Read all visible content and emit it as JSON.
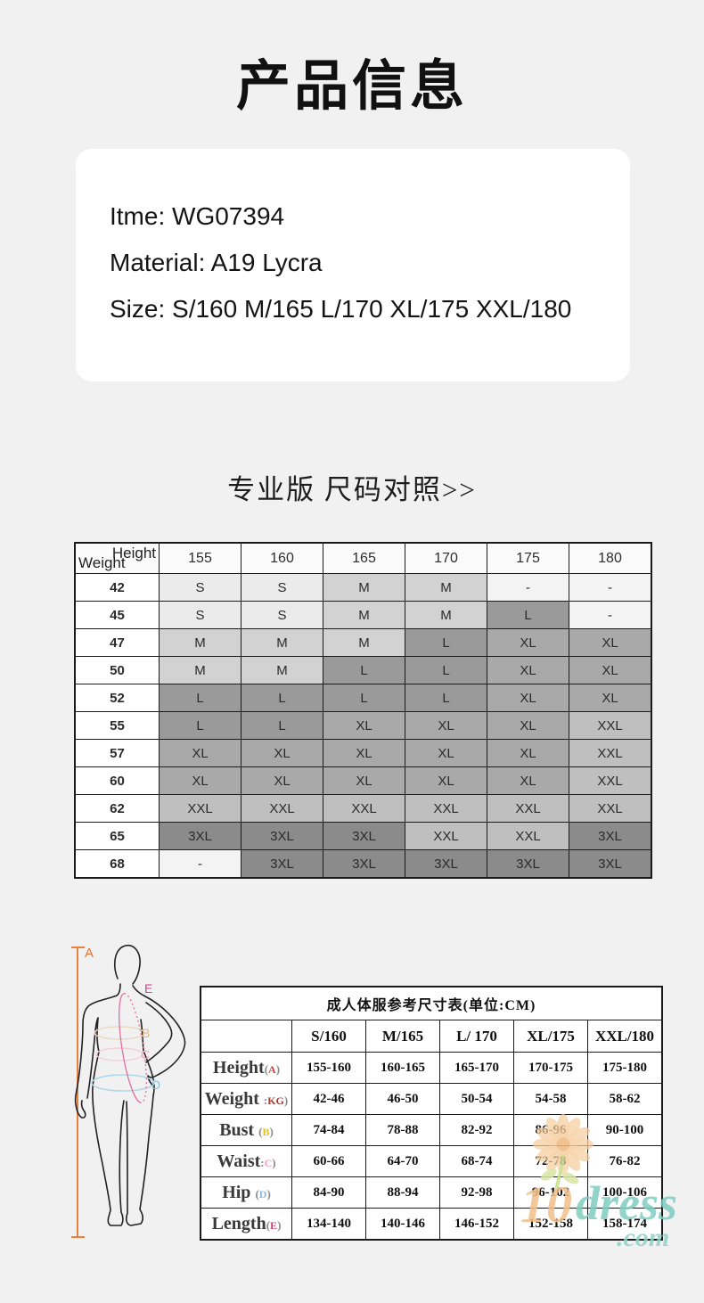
{
  "header": {
    "title": "产品信息"
  },
  "card": {
    "lines": [
      "Itme: WG07394",
      "Material: A19 Lycra",
      "Size: S/160 M/165 L/170 XL/175 XXL/180"
    ]
  },
  "section": {
    "subtitle": "专业版 尺码对照>>"
  },
  "size_chart": {
    "corner": {
      "top_label": "Height",
      "bottom_label": "Weight"
    },
    "heights": [
      "155",
      "160",
      "165",
      "170",
      "175",
      "180"
    ],
    "rows": [
      {
        "weight": "42",
        "cells": [
          "S",
          "S",
          "M",
          "M",
          "-",
          "-"
        ]
      },
      {
        "weight": "45",
        "cells": [
          "S",
          "S",
          "M",
          "M",
          "L",
          "-"
        ]
      },
      {
        "weight": "47",
        "cells": [
          "M",
          "M",
          "M",
          "L",
          "XL",
          "XL"
        ]
      },
      {
        "weight": "50",
        "cells": [
          "M",
          "M",
          "L",
          "L",
          "XL",
          "XL"
        ]
      },
      {
        "weight": "52",
        "cells": [
          "L",
          "L",
          "L",
          "L",
          "XL",
          "XL"
        ]
      },
      {
        "weight": "55",
        "cells": [
          "L",
          "L",
          "XL",
          "XL",
          "XL",
          "XXL"
        ]
      },
      {
        "weight": "57",
        "cells": [
          "XL",
          "XL",
          "XL",
          "XL",
          "XL",
          "XXL"
        ]
      },
      {
        "weight": "60",
        "cells": [
          "XL",
          "XL",
          "XL",
          "XL",
          "XL",
          "XXL"
        ]
      },
      {
        "weight": "62",
        "cells": [
          "XXL",
          "XXL",
          "XXL",
          "XXL",
          "XXL",
          "XXL"
        ]
      },
      {
        "weight": "65",
        "cells": [
          "3XL",
          "3XL",
          "3XL",
          "XXL",
          "XXL",
          "3XL"
        ]
      },
      {
        "weight": "68",
        "cells": [
          "-",
          "3XL",
          "3XL",
          "3XL",
          "3XL",
          "3XL"
        ]
      }
    ],
    "size_colors": {
      "S": "#ebebeb",
      "M": "#d2d2d2",
      "L": "#9a9a9a",
      "XL": "#a9a9a9",
      "XXL": "#bfbfbf",
      "3XL": "#8b8b8b",
      "-": "#f3f3f3"
    }
  },
  "figure": {
    "labels": {
      "A": "A",
      "B": "B",
      "C": "C",
      "D": "D",
      "E": "E"
    },
    "colors": {
      "A": "#e8722e",
      "B": "#ddb98c",
      "C": "#e9aebd",
      "D": "#85c3e2",
      "E": "#d6408b",
      "outline": "#222222",
      "bust_ring": "#ecd9bd",
      "waist_ring": "#f4cfd9",
      "hip_ring": "#aed7ec"
    }
  },
  "measurement_table": {
    "title": "成人体服参考尺寸表(单位:CM)",
    "columns": [
      "S/160",
      "M/165",
      "L/ 170",
      "XL/175",
      "XXL/180"
    ],
    "rows": [
      {
        "prefix": "Height",
        "open": "(",
        "letter": "A",
        "close": ")",
        "letter_color": "#e23b30",
        "values": [
          "155-160",
          "160-165",
          "165-170",
          "170-175",
          "175-180"
        ]
      },
      {
        "prefix": "Weight ",
        "open": ":",
        "letter": "KG",
        "close": ")",
        "letter_color": "#9c3b2e",
        "values": [
          "42-46",
          "46-50",
          "50-54",
          "54-58",
          "58-62"
        ]
      },
      {
        "prefix": "Bust ",
        "open": "(",
        "letter": "B",
        "close": ")",
        "letter_color": "#e0c01c",
        "values": [
          "74-84",
          "78-88",
          "82-92",
          "86-96",
          "90-100"
        ]
      },
      {
        "prefix": "Waist",
        "open": ":",
        "letter": "C",
        "close": ")",
        "letter_color": "#f0a3b8",
        "values": [
          "60-66",
          "64-70",
          "68-74",
          "72-78",
          "76-82"
        ]
      },
      {
        "prefix": "Hip ",
        "open": "(",
        "letter": "D",
        "close": ")",
        "letter_color": "#86bfe3",
        "values": [
          "84-90",
          "88-94",
          "92-98",
          "96-102",
          "100-106"
        ]
      },
      {
        "prefix": "Length",
        "open": "(",
        "letter": "E",
        "close": ")",
        "letter_color": "#e23a7c",
        "values": [
          "134-140",
          "140-146",
          "146-152",
          "152-158",
          "158-174"
        ]
      }
    ]
  },
  "watermark": {
    "text_10": "10",
    "text_dress": "dress",
    "text_com": ".com",
    "colors": {
      "ten": "#f2c08b",
      "dress": "#7fccc1",
      "com": "#8fd2c6",
      "petal": "#f6cfa0",
      "flower_center": "#eeb87e",
      "stem": "#c9dd8d"
    }
  }
}
